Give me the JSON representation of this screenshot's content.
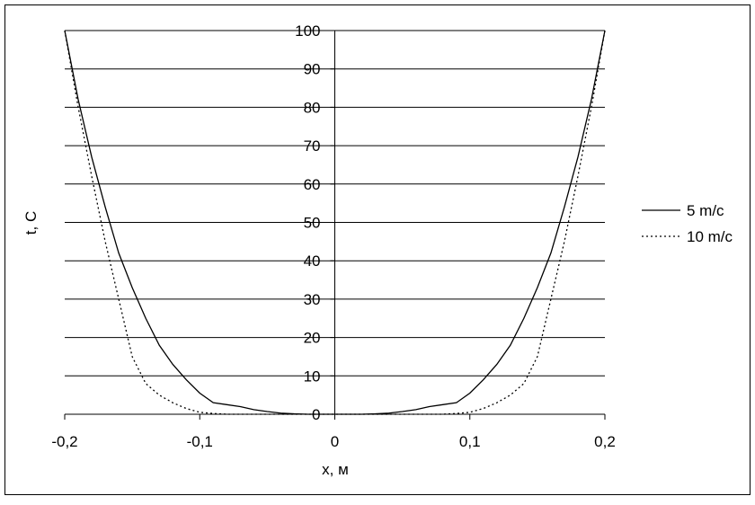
{
  "chart_data": {
    "type": "line",
    "x": [
      -0.2,
      -0.19,
      -0.18,
      -0.17,
      -0.16,
      -0.15,
      -0.14,
      -0.13,
      -0.12,
      -0.11,
      -0.1,
      -0.09,
      -0.08,
      -0.07,
      -0.06,
      -0.05,
      -0.04,
      -0.03,
      -0.02,
      -0.01,
      0,
      0.01,
      0.02,
      0.03,
      0.04,
      0.05,
      0.06,
      0.07,
      0.08,
      0.09,
      0.1,
      0.11,
      0.12,
      0.13,
      0.14,
      0.15,
      0.16,
      0.17,
      0.18,
      0.19,
      0.2
    ],
    "series": [
      {
        "name": "5 m/c",
        "color": "#000000",
        "dash": "solid",
        "values": [
          100,
          82,
          67,
          54,
          42,
          33,
          25,
          18,
          13,
          9,
          5.5,
          3,
          2.5,
          2,
          1.2,
          0.7,
          0.3,
          0.1,
          0,
          0,
          0,
          0,
          0,
          0.1,
          0.3,
          0.7,
          1.2,
          2,
          2.5,
          3,
          5.5,
          9,
          13,
          18,
          25,
          33,
          42,
          54,
          67,
          82,
          100
        ]
      },
      {
        "name": "10 m/c",
        "color": "#000000",
        "dash": "dotted",
        "values": [
          100,
          80,
          62,
          45,
          30,
          15,
          8,
          5,
          3,
          1.5,
          0.5,
          0.2,
          0,
          0,
          0,
          0,
          0,
          0,
          0,
          0,
          0,
          0,
          0,
          0,
          0,
          0,
          0,
          0,
          0,
          0.2,
          0.5,
          1.5,
          3,
          5,
          8,
          15,
          30,
          45,
          62,
          80,
          100
        ]
      }
    ],
    "xlabel": "x, м",
    "ylabel": "t, C",
    "xlim": [
      -0.2,
      0.2
    ],
    "ylim": [
      0,
      100
    ],
    "xticks": [
      {
        "value": -0.2,
        "label": "-0,2"
      },
      {
        "value": -0.1,
        "label": "-0,1"
      },
      0,
      {
        "value": 0.1,
        "label": "0,1"
      },
      {
        "value": 0.2,
        "label": "0,2"
      }
    ],
    "yticks": [
      0,
      10,
      20,
      30,
      40,
      50,
      60,
      70,
      80,
      90,
      100
    ],
    "grid": true,
    "legend": "right"
  }
}
